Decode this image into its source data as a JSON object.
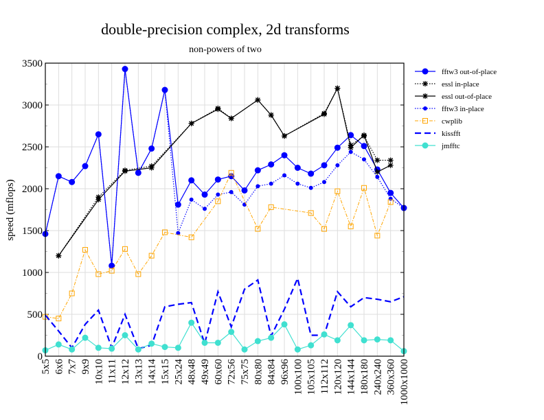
{
  "chart_data": {
    "type": "line",
    "title": "double-precision complex, 2d transforms",
    "subtitle": "non-powers of two",
    "xlabel": "",
    "ylabel": "speed (mflops)",
    "ylim": [
      0,
      3500
    ],
    "yticks": [
      0,
      500,
      1000,
      1500,
      2000,
      2500,
      3000,
      3500
    ],
    "grid": true,
    "legend_position": "right",
    "categories": [
      "5x5",
      "6x6",
      "7x7",
      "9x9",
      "10x10",
      "11x11",
      "12x12",
      "13x13",
      "14x14",
      "15x15",
      "25x24",
      "48x48",
      "49x49",
      "60x60",
      "72x56",
      "75x75",
      "80x80",
      "84x84",
      "96x96",
      "100x100",
      "105x105",
      "112x112",
      "120x120",
      "144x144",
      "180x180",
      "240x240",
      "360x360",
      "1000x1000"
    ],
    "series": [
      {
        "name": "fftw3 out-of-place",
        "color": "#0000ff",
        "style": "solid",
        "marker": "circle",
        "values": [
          1460,
          2150,
          2080,
          2270,
          2650,
          1080,
          3430,
          2190,
          2480,
          3180,
          1810,
          2100,
          1930,
          2110,
          2150,
          1980,
          2220,
          2290,
          2400,
          2250,
          2180,
          2280,
          2490,
          2640,
          2510,
          2230,
          1950,
          1770
        ]
      },
      {
        "name": "essl in-place",
        "color": "#000000",
        "style": "dotted",
        "marker": "star",
        "values": [
          null,
          1200,
          null,
          null,
          1900,
          null,
          2220,
          null,
          2270,
          null,
          null,
          2780,
          null,
          2960,
          2840,
          null,
          3060,
          2880,
          2630,
          null,
          null,
          2900,
          3200,
          2520,
          2630,
          2340,
          2340,
          null
        ]
      },
      {
        "name": "essl out-of-place",
        "color": "#000000",
        "style": "solid",
        "marker": "star",
        "values": [
          null,
          1200,
          null,
          null,
          1870,
          null,
          2210,
          null,
          2250,
          null,
          null,
          2780,
          null,
          2950,
          2840,
          null,
          3060,
          2880,
          2630,
          null,
          null,
          2890,
          3200,
          2490,
          2640,
          2200,
          2280,
          null
        ]
      },
      {
        "name": "fftw3 in-place",
        "color": "#0000ff",
        "style": "dotted",
        "marker": "dot",
        "values": [
          1460,
          2150,
          2080,
          2270,
          2650,
          1080,
          3430,
          2190,
          2480,
          3180,
          1470,
          1870,
          1760,
          1930,
          1960,
          1810,
          2030,
          2060,
          2160,
          2060,
          2010,
          2080,
          2280,
          2440,
          2350,
          2140,
          1880,
          1770
        ]
      },
      {
        "name": "cwplib",
        "color": "#ffa500",
        "style": "dashdot",
        "marker": "square",
        "values": [
          470,
          450,
          750,
          1270,
          980,
          1020,
          1280,
          980,
          1200,
          1480,
          null,
          1420,
          null,
          1850,
          2190,
          null,
          1520,
          1780,
          null,
          null,
          1710,
          1520,
          1970,
          1550,
          2010,
          1440,
          1840,
          null
        ]
      },
      {
        "name": "kissfft",
        "color": "#0000ff",
        "style": "dashed",
        "marker": "none",
        "values": [
          490,
          300,
          100,
          380,
          550,
          100,
          500,
          90,
          130,
          590,
          620,
          640,
          150,
          770,
          350,
          800,
          910,
          240,
          560,
          930,
          250,
          250,
          770,
          590,
          700,
          680,
          650,
          710
        ]
      },
      {
        "name": "jmfftc",
        "color": "#40e0d0",
        "style": "solid",
        "marker": "circle",
        "values": [
          70,
          140,
          80,
          220,
          100,
          90,
          250,
          80,
          150,
          110,
          100,
          400,
          160,
          160,
          290,
          80,
          180,
          220,
          380,
          80,
          130,
          260,
          190,
          370,
          190,
          200,
          190,
          60
        ]
      }
    ]
  }
}
